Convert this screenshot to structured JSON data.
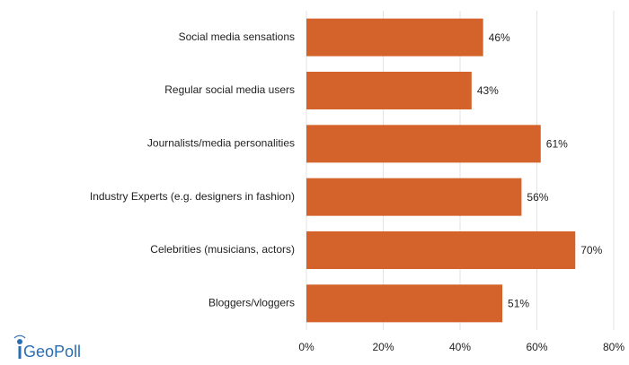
{
  "chart_data": {
    "type": "bar",
    "orientation": "horizontal",
    "categories": [
      "Social media sensations",
      "Regular social media users",
      "Journalists/media personalities",
      "Industry Experts (e.g. designers in fashion)",
      "Celebrities (musicians, actors)",
      "Bloggers/vloggers"
    ],
    "values": [
      46,
      43,
      61,
      56,
      70,
      51
    ],
    "value_labels": [
      "46%",
      "43%",
      "61%",
      "56%",
      "70%",
      "51%"
    ],
    "color": "#d4622b",
    "xlim": [
      0,
      80
    ],
    "xticks": [
      {
        "value": 0,
        "label": "0%"
      },
      {
        "value": 20,
        "label": "20%"
      },
      {
        "value": 40,
        "label": "40%"
      },
      {
        "value": 60,
        "label": "60%"
      },
      {
        "value": 80,
        "label": "80%"
      }
    ],
    "grid": true
  },
  "logo": "GeoPoll"
}
